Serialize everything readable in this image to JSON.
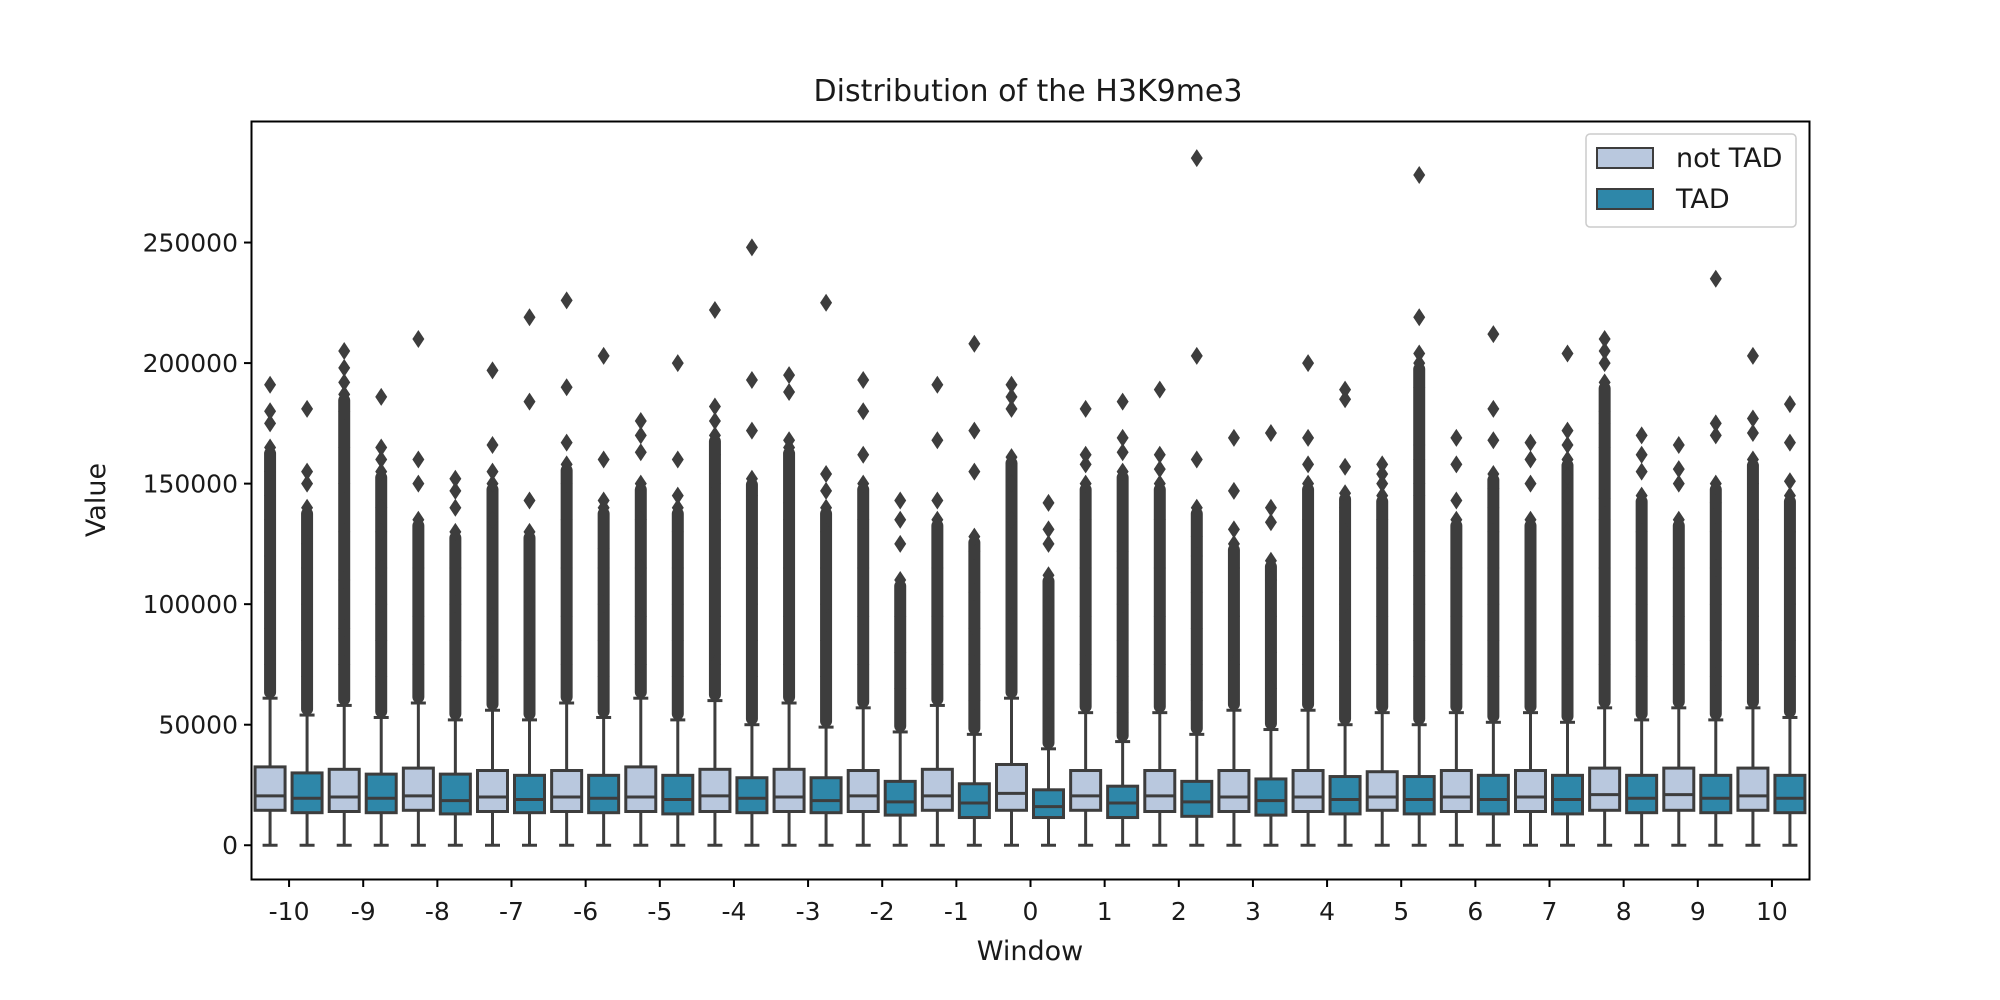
{
  "chart_data": {
    "type": "box",
    "title": "Distribution of the H3K9me3",
    "xlabel": "Window",
    "ylabel": "Value",
    "ylim": [
      -14000,
      300000
    ],
    "yticks": [
      0,
      50000,
      100000,
      150000,
      200000,
      250000
    ],
    "ytick_labels": [
      "0",
      "50000",
      "100000",
      "150000",
      "200000",
      "250000"
    ],
    "categories": [
      "-10",
      "-9",
      "-8",
      "-7",
      "-6",
      "-5",
      "-4",
      "-3",
      "-2",
      "-1",
      "0",
      "1",
      "2",
      "3",
      "4",
      "5",
      "6",
      "7",
      "8",
      "9",
      "10"
    ],
    "legend_position": "top-right",
    "colors": {
      "not_tad": "#b9c8de",
      "tad": "#2e87a9",
      "edge": "#3d3d3d"
    },
    "series": [
      {
        "name": "not TAD",
        "boxes": [
          {
            "whislo": 0,
            "q1": 14500,
            "med": 20500,
            "q3": 32500,
            "whishi": 61000,
            "fliers": [
              75000,
              90000,
              105000,
              120000,
              135000,
              145000,
              155000,
              165000,
              175000,
              180000,
              191000
            ]
          },
          {
            "whislo": 0,
            "q1": 14000,
            "med": 20000,
            "q3": 31500,
            "whishi": 58000,
            "fliers": [
              75000,
              90000,
              110000,
              130000,
              150000,
              165000,
              180000,
              187000,
              192000,
              198000,
              205000
            ]
          },
          {
            "whislo": 0,
            "q1": 14500,
            "med": 20500,
            "q3": 32000,
            "whishi": 59000,
            "fliers": [
              75000,
              95000,
              115000,
              135000,
              150000,
              160000,
              210000
            ]
          },
          {
            "whislo": 0,
            "q1": 14000,
            "med": 20000,
            "q3": 31000,
            "whishi": 56000,
            "fliers": [
              75000,
              95000,
              115000,
              135000,
              150000,
              155000,
              166000,
              197000
            ]
          },
          {
            "whislo": 0,
            "q1": 14000,
            "med": 20000,
            "q3": 31000,
            "whishi": 59000,
            "fliers": [
              75000,
              95000,
              115000,
              135000,
              150000,
              158000,
              167000,
              190000,
              226000
            ]
          },
          {
            "whislo": 0,
            "q1": 14000,
            "med": 20000,
            "q3": 32500,
            "whishi": 61000,
            "fliers": [
              75000,
              95000,
              115000,
              135000,
              150000,
              163000,
              170000,
              176000
            ]
          },
          {
            "whislo": 0,
            "q1": 14000,
            "med": 20500,
            "q3": 31500,
            "whishi": 60000,
            "fliers": [
              75000,
              95000,
              115000,
              135000,
              150000,
              162000,
              170000,
              176000,
              182000,
              222000
            ]
          },
          {
            "whislo": 0,
            "q1": 14000,
            "med": 20000,
            "q3": 31500,
            "whishi": 59000,
            "fliers": [
              75000,
              95000,
              115000,
              135000,
              142000,
              165000,
              168000,
              188000,
              195000
            ]
          },
          {
            "whislo": 0,
            "q1": 14000,
            "med": 20500,
            "q3": 31000,
            "whishi": 57000,
            "fliers": [
              75000,
              95000,
              115000,
              135000,
              150000,
              162000,
              180000,
              193000
            ]
          },
          {
            "whislo": 0,
            "q1": 14500,
            "med": 20500,
            "q3": 31500,
            "whishi": 58000,
            "fliers": [
              75000,
              95000,
              115000,
              135000,
              143000,
              168000,
              191000
            ]
          },
          {
            "whislo": 0,
            "q1": 14500,
            "med": 21500,
            "q3": 33500,
            "whishi": 61000,
            "fliers": [
              75000,
              95000,
              115000,
              135000,
              150000,
              161000,
              181000,
              186000,
              191000
            ]
          },
          {
            "whislo": 0,
            "q1": 14500,
            "med": 20500,
            "q3": 31000,
            "whishi": 55000,
            "fliers": [
              75000,
              95000,
              115000,
              135000,
              150000,
              158000,
              162000,
              181000
            ]
          },
          {
            "whislo": 0,
            "q1": 14000,
            "med": 20500,
            "q3": 31000,
            "whishi": 55000,
            "fliers": [
              75000,
              95000,
              115000,
              135000,
              150000,
              156000,
              162000,
              189000
            ]
          },
          {
            "whislo": 0,
            "q1": 14000,
            "med": 20000,
            "q3": 31000,
            "whishi": 56000,
            "fliers": [
              75000,
              95000,
              115000,
              125000,
              131000,
              147000,
              169000
            ]
          },
          {
            "whislo": 0,
            "q1": 14000,
            "med": 20000,
            "q3": 31000,
            "whishi": 56000,
            "fliers": [
              75000,
              95000,
              115000,
              135000,
              150000,
              158000,
              169000,
              200000
            ]
          },
          {
            "whislo": 0,
            "q1": 14500,
            "med": 20000,
            "q3": 30500,
            "whishi": 55000,
            "fliers": [
              75000,
              95000,
              115000,
              135000,
              145000,
              150000,
              154000,
              158000
            ]
          },
          {
            "whislo": 0,
            "q1": 14000,
            "med": 20000,
            "q3": 31000,
            "whishi": 55000,
            "fliers": [
              75000,
              95000,
              115000,
              135000,
              143000,
              158000,
              169000
            ]
          },
          {
            "whislo": 0,
            "q1": 14000,
            "med": 20000,
            "q3": 31000,
            "whishi": 55000,
            "fliers": [
              75000,
              95000,
              115000,
              135000,
              150000,
              160000,
              167000
            ]
          },
          {
            "whislo": 0,
            "q1": 14500,
            "med": 21000,
            "q3": 32000,
            "whishi": 57000,
            "fliers": [
              75000,
              95000,
              115000,
              135000,
              144000,
              165000,
              175000,
              180000,
              192000,
              200000,
              205000,
              210000
            ]
          },
          {
            "whislo": 0,
            "q1": 14500,
            "med": 21000,
            "q3": 32000,
            "whishi": 57000,
            "fliers": [
              75000,
              95000,
              115000,
              135000,
              150000,
              156000,
              166000
            ]
          },
          {
            "whislo": 0,
            "q1": 14500,
            "med": 20500,
            "q3": 32000,
            "whishi": 57000,
            "fliers": [
              75000,
              95000,
              115000,
              135000,
              150000,
              160000,
              171000,
              177000,
              203000
            ]
          }
        ]
      },
      {
        "name": "TAD",
        "boxes": [
          {
            "whislo": 0,
            "q1": 13500,
            "med": 19500,
            "q3": 30000,
            "whishi": 54000,
            "fliers": [
              70000,
              85000,
              100000,
              115000,
              125000,
              140000,
              150000,
              155000,
              181000
            ]
          },
          {
            "whislo": 0,
            "q1": 13500,
            "med": 19500,
            "q3": 29500,
            "whishi": 53000,
            "fliers": [
              70000,
              85000,
              100000,
              115000,
              130000,
              140000,
              155000,
              160000,
              165000,
              186000
            ]
          },
          {
            "whislo": 0,
            "q1": 13000,
            "med": 18500,
            "q3": 29500,
            "whishi": 52000,
            "fliers": [
              70000,
              85000,
              100000,
              115000,
              130000,
              140000,
              147000,
              152000
            ]
          },
          {
            "whislo": 0,
            "q1": 13500,
            "med": 19000,
            "q3": 29000,
            "whishi": 52000,
            "fliers": [
              70000,
              85000,
              100000,
              115000,
              130000,
              143000,
              184000,
              219000
            ]
          },
          {
            "whislo": 0,
            "q1": 13500,
            "med": 19500,
            "q3": 29000,
            "whishi": 53000,
            "fliers": [
              70000,
              85000,
              100000,
              115000,
              123000,
              140000,
              143000,
              160000,
              203000
            ]
          },
          {
            "whislo": 0,
            "q1": 13000,
            "med": 19000,
            "q3": 29000,
            "whishi": 52000,
            "fliers": [
              70000,
              85000,
              100000,
              115000,
              130000,
              140000,
              145000,
              160000,
              200000
            ]
          },
          {
            "whislo": 0,
            "q1": 13500,
            "med": 19500,
            "q3": 28000,
            "whishi": 50000,
            "fliers": [
              70000,
              85000,
              100000,
              115000,
              125000,
              145000,
              152000,
              172000,
              193000,
              248000
            ]
          },
          {
            "whislo": 0,
            "q1": 13500,
            "med": 18500,
            "q3": 28000,
            "whishi": 49000,
            "fliers": [
              70000,
              85000,
              100000,
              115000,
              130000,
              140000,
              147000,
              154000,
              225000
            ]
          },
          {
            "whislo": 0,
            "q1": 12500,
            "med": 18000,
            "q3": 26500,
            "whishi": 47000,
            "fliers": [
              65000,
              80000,
              95000,
              110000,
              125000,
              135000,
              143000
            ]
          },
          {
            "whislo": 0,
            "q1": 11500,
            "med": 17500,
            "q3": 25500,
            "whishi": 46000,
            "fliers": [
              60000,
              75000,
              90000,
              105000,
              122000,
              128000,
              155000,
              172000,
              208000
            ]
          },
          {
            "whislo": 0,
            "q1": 11500,
            "med": 16000,
            "q3": 23000,
            "whishi": 40000,
            "fliers": [
              50000,
              60000,
              70000,
              80000,
              90000,
              100000,
              112000,
              125000,
              131000,
              142000
            ]
          },
          {
            "whislo": 0,
            "q1": 11500,
            "med": 17500,
            "q3": 24500,
            "whishi": 43000,
            "fliers": [
              55000,
              70000,
              85000,
              100000,
              115000,
              122000,
              155000,
              163000,
              169000,
              184000
            ]
          },
          {
            "whislo": 0,
            "q1": 12000,
            "med": 18000,
            "q3": 26500,
            "whishi": 46000,
            "fliers": [
              60000,
              75000,
              90000,
              105000,
              120000,
              128000,
              140000,
              160000,
              203000,
              285000
            ]
          },
          {
            "whislo": 0,
            "q1": 12500,
            "med": 18500,
            "q3": 27500,
            "whishi": 48000,
            "fliers": [
              65000,
              80000,
              95000,
              110000,
              118000,
              134000,
              140000,
              171000
            ]
          },
          {
            "whislo": 0,
            "q1": 13000,
            "med": 19000,
            "q3": 28500,
            "whishi": 50000,
            "fliers": [
              70000,
              85000,
              100000,
              115000,
              130000,
              140000,
              146000,
              157000,
              185000,
              189000
            ]
          },
          {
            "whislo": 0,
            "q1": 13000,
            "med": 19000,
            "q3": 28500,
            "whishi": 50000,
            "fliers": [
              70000,
              85000,
              100000,
              112000,
              122000,
              145000,
              150000,
              160000,
              166000,
              190000,
              200000,
              204000,
              219000,
              278000
            ]
          },
          {
            "whislo": 0,
            "q1": 13000,
            "med": 19000,
            "q3": 29000,
            "whishi": 51000,
            "fliers": [
              70000,
              85000,
              100000,
              115000,
              130000,
              140000,
              148000,
              154000,
              168000,
              181000,
              212000
            ]
          },
          {
            "whislo": 0,
            "q1": 13000,
            "med": 19000,
            "q3": 29000,
            "whishi": 51000,
            "fliers": [
              70000,
              85000,
              100000,
              115000,
              130000,
              145000,
              153000,
              160000,
              166000,
              172000,
              204000
            ]
          },
          {
            "whislo": 0,
            "q1": 13500,
            "med": 19500,
            "q3": 29000,
            "whishi": 52000,
            "fliers": [
              70000,
              85000,
              100000,
              115000,
              130000,
              145000,
              155000,
              162000,
              170000
            ]
          },
          {
            "whislo": 0,
            "q1": 13500,
            "med": 19500,
            "q3": 29000,
            "whishi": 52000,
            "fliers": [
              70000,
              85000,
              100000,
              115000,
              130000,
              142000,
              150000,
              170000,
              175000,
              235000
            ]
          },
          {
            "whislo": 0,
            "q1": 13500,
            "med": 19500,
            "q3": 29000,
            "whishi": 53000,
            "fliers": [
              70000,
              85000,
              100000,
              115000,
              130000,
              145000,
              151000,
              167000,
              183000
            ]
          }
        ]
      }
    ]
  }
}
